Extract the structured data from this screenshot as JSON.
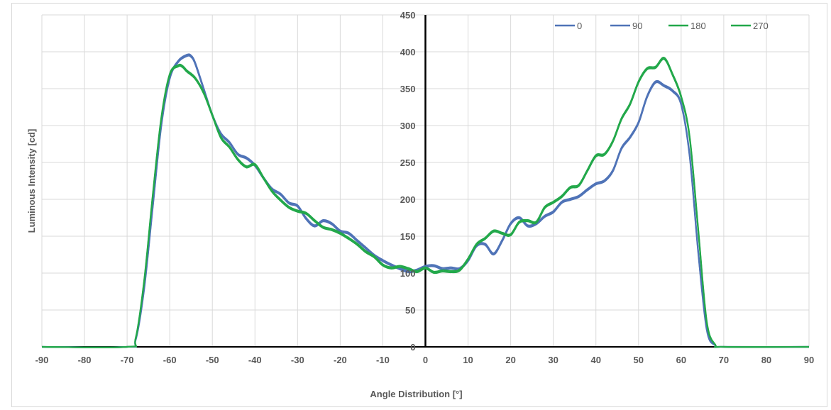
{
  "chart_data": {
    "type": "line",
    "title": "",
    "xlabel": "Angle Distribution [°]",
    "ylabel": "Luminous Intensity [cd]",
    "xlim": [
      -90,
      90
    ],
    "ylim": [
      0,
      450
    ],
    "xticks": [
      -90,
      -80,
      -70,
      -60,
      -50,
      -40,
      -30,
      -20,
      -10,
      0,
      10,
      20,
      30,
      40,
      50,
      60,
      70,
      80,
      90
    ],
    "yticks": [
      0,
      50,
      100,
      150,
      200,
      250,
      300,
      350,
      400,
      450
    ],
    "grid": true,
    "legend_position": "top-right",
    "series": [
      {
        "name": "0",
        "color": "#4f73b7",
        "x": [
          -90,
          -70,
          -68,
          -66,
          -64,
          -62,
          -60,
          -58,
          -56,
          -55,
          -54,
          -52,
          -50,
          -48,
          -46,
          -44,
          -42,
          -40,
          -38,
          -36,
          -34,
          -32,
          -30,
          -28,
          -26,
          -24,
          -22,
          -20,
          -18,
          -16,
          -14,
          -12,
          -10,
          -8,
          -6,
          -4,
          -2,
          0,
          2,
          4,
          6,
          8,
          10,
          12,
          14,
          16,
          18,
          20,
          22,
          24,
          26,
          28,
          30,
          32,
          34,
          36,
          38,
          40,
          42,
          44,
          46,
          48,
          50,
          52,
          54,
          56,
          58,
          60,
          62,
          64,
          66,
          68,
          70,
          90
        ],
        "y": [
          0,
          0,
          10,
          80,
          190,
          300,
          365,
          388,
          396,
          395,
          385,
          350,
          315,
          290,
          278,
          262,
          257,
          247,
          230,
          215,
          208,
          196,
          192,
          175,
          165,
          172,
          168,
          158,
          155,
          145,
          135,
          125,
          118,
          112,
          107,
          103,
          105,
          110,
          111,
          107,
          108,
          107,
          118,
          138,
          140,
          127,
          145,
          168,
          176,
          165,
          168,
          178,
          184,
          197,
          201,
          205,
          214,
          222,
          226,
          240,
          270,
          285,
          305,
          340,
          360,
          355,
          348,
          330,
          260,
          130,
          25,
          2,
          0,
          0
        ]
      },
      {
        "name": "90",
        "color": "#4f73b7",
        "x": [
          -90,
          -70,
          -68,
          -66,
          -64,
          -62,
          -60,
          -58,
          -56,
          -55,
          -54,
          -52,
          -50,
          -48,
          -46,
          -44,
          -42,
          -40,
          -38,
          -36,
          -34,
          -32,
          -30,
          -28,
          -26,
          -24,
          -22,
          -20,
          -18,
          -16,
          -14,
          -12,
          -10,
          -8,
          -6,
          -4,
          -2,
          0,
          2,
          4,
          6,
          8,
          10,
          12,
          14,
          16,
          18,
          20,
          22,
          24,
          26,
          28,
          30,
          32,
          34,
          36,
          38,
          40,
          42,
          44,
          46,
          48,
          50,
          52,
          54,
          56,
          58,
          60,
          62,
          64,
          66,
          68,
          70,
          90
        ],
        "y": [
          0,
          0,
          9,
          78,
          188,
          298,
          363,
          386,
          394,
          393,
          383,
          348,
          313,
          288,
          276,
          260,
          255,
          245,
          228,
          213,
          206,
          194,
          190,
          173,
          163,
          170,
          166,
          156,
          153,
          143,
          133,
          123,
          116,
          110,
          105,
          101,
          103,
          108,
          109,
          105,
          106,
          105,
          116,
          136,
          138,
          125,
          143,
          166,
          174,
          163,
          166,
          176,
          182,
          195,
          199,
          203,
          212,
          220,
          224,
          238,
          268,
          283,
          303,
          338,
          358,
          353,
          346,
          328,
          258,
          128,
          23,
          2,
          0,
          0
        ]
      },
      {
        "name": "180",
        "color": "#22a84a",
        "x": [
          -90,
          -70,
          -68,
          -66,
          -64,
          -62,
          -60,
          -58,
          -57,
          -56,
          -54,
          -52,
          -50,
          -48,
          -46,
          -44,
          -42,
          -40,
          -38,
          -36,
          -34,
          -32,
          -30,
          -28,
          -26,
          -24,
          -22,
          -20,
          -18,
          -16,
          -14,
          -12,
          -10,
          -8,
          -6,
          -4,
          -2,
          0,
          2,
          4,
          6,
          8,
          10,
          12,
          14,
          16,
          18,
          20,
          22,
          24,
          26,
          28,
          30,
          32,
          34,
          36,
          38,
          40,
          42,
          44,
          46,
          48,
          50,
          52,
          54,
          56,
          58,
          60,
          62,
          64,
          66,
          68,
          70,
          90
        ],
        "y": [
          0,
          0,
          12,
          90,
          205,
          310,
          370,
          382,
          381,
          375,
          365,
          345,
          315,
          285,
          272,
          255,
          245,
          248,
          230,
          212,
          200,
          190,
          185,
          182,
          172,
          163,
          160,
          155,
          148,
          140,
          130,
          123,
          112,
          108,
          110,
          107,
          103,
          108,
          102,
          104,
          103,
          105,
          120,
          140,
          148,
          158,
          155,
          153,
          170,
          172,
          170,
          190,
          197,
          205,
          217,
          220,
          240,
          260,
          262,
          280,
          310,
          330,
          360,
          378,
          380,
          392,
          370,
          340,
          285,
          160,
          35,
          3,
          0,
          0
        ]
      },
      {
        "name": "270",
        "color": "#22a84a",
        "x": [
          -90,
          -70,
          -68,
          -66,
          -64,
          -62,
          -60,
          -58,
          -57,
          -56,
          -54,
          -52,
          -50,
          -48,
          -46,
          -44,
          -42,
          -40,
          -38,
          -36,
          -34,
          -32,
          -30,
          -28,
          -26,
          -24,
          -22,
          -20,
          -18,
          -16,
          -14,
          -12,
          -10,
          -8,
          -6,
          -4,
          -2,
          0,
          2,
          4,
          6,
          8,
          10,
          12,
          14,
          16,
          18,
          20,
          22,
          24,
          26,
          28,
          30,
          32,
          34,
          36,
          38,
          40,
          42,
          44,
          46,
          48,
          50,
          52,
          54,
          56,
          58,
          60,
          62,
          64,
          66,
          68,
          70,
          90
        ],
        "y": [
          0,
          0,
          11,
          88,
          203,
          308,
          368,
          380,
          379,
          373,
          363,
          343,
          313,
          283,
          270,
          253,
          243,
          246,
          228,
          210,
          198,
          188,
          183,
          180,
          170,
          161,
          158,
          153,
          146,
          138,
          128,
          121,
          110,
          106,
          108,
          105,
          101,
          106,
          100,
          102,
          101,
          103,
          118,
          138,
          146,
          156,
          153,
          151,
          168,
          170,
          168,
          188,
          195,
          203,
          215,
          218,
          238,
          258,
          260,
          278,
          308,
          328,
          358,
          376,
          378,
          390,
          368,
          338,
          283,
          158,
          33,
          3,
          0,
          0
        ]
      }
    ]
  }
}
